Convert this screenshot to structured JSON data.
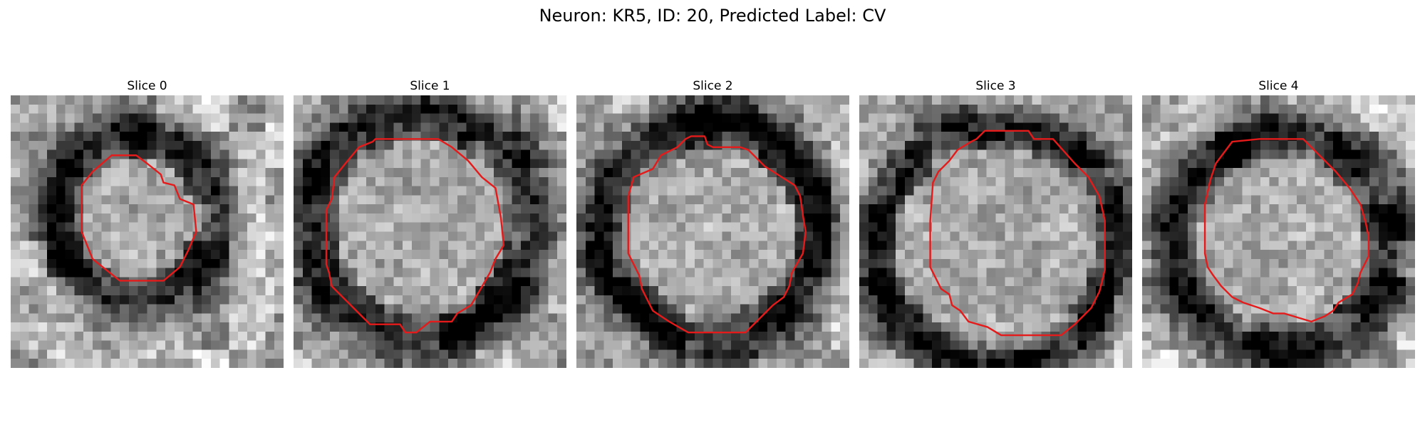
{
  "figure": {
    "title": "Neuron: KR5, ID: 20, Predicted Label: CV",
    "outline_color": "#e51a1a",
    "colormap": "gray",
    "slices": [
      {
        "label": "Slice 0",
        "seed": 11,
        "center": [
          0.46,
          0.45
        ],
        "ring_radius": 0.3,
        "ring_width": 0.09,
        "contour": [
          [
            0.37,
            0.22
          ],
          [
            0.46,
            0.22
          ],
          [
            0.5,
            0.25
          ],
          [
            0.55,
            0.29
          ],
          [
            0.56,
            0.32
          ],
          [
            0.6,
            0.33
          ],
          [
            0.62,
            0.38
          ],
          [
            0.67,
            0.4
          ],
          [
            0.68,
            0.5
          ],
          [
            0.65,
            0.57
          ],
          [
            0.62,
            0.63
          ],
          [
            0.56,
            0.68
          ],
          [
            0.4,
            0.68
          ],
          [
            0.3,
            0.6
          ],
          [
            0.26,
            0.5
          ],
          [
            0.26,
            0.33
          ],
          [
            0.3,
            0.28
          ]
        ]
      },
      {
        "label": "Slice 1",
        "seed": 23,
        "center": [
          0.47,
          0.47
        ],
        "ring_radius": 0.41,
        "ring_width": 0.1,
        "contour": [
          [
            0.29,
            0.17
          ],
          [
            0.3,
            0.16
          ],
          [
            0.53,
            0.16
          ],
          [
            0.58,
            0.19
          ],
          [
            0.64,
            0.24
          ],
          [
            0.69,
            0.3
          ],
          [
            0.74,
            0.34
          ],
          [
            0.76,
            0.45
          ],
          [
            0.77,
            0.55
          ],
          [
            0.74,
            0.6
          ],
          [
            0.72,
            0.65
          ],
          [
            0.68,
            0.72
          ],
          [
            0.65,
            0.77
          ],
          [
            0.6,
            0.8
          ],
          [
            0.58,
            0.83
          ],
          [
            0.5,
            0.83
          ],
          [
            0.45,
            0.87
          ],
          [
            0.41,
            0.87
          ],
          [
            0.39,
            0.84
          ],
          [
            0.28,
            0.84
          ],
          [
            0.22,
            0.78
          ],
          [
            0.18,
            0.74
          ],
          [
            0.14,
            0.7
          ],
          [
            0.13,
            0.65
          ],
          [
            0.12,
            0.62
          ],
          [
            0.12,
            0.42
          ],
          [
            0.14,
            0.38
          ],
          [
            0.15,
            0.3
          ],
          [
            0.19,
            0.25
          ],
          [
            0.24,
            0.19
          ]
        ]
      },
      {
        "label": "Slice 2",
        "seed": 37,
        "center": [
          0.5,
          0.5
        ],
        "ring_radius": 0.4,
        "ring_width": 0.1,
        "contour": [
          [
            0.4,
            0.16
          ],
          [
            0.42,
            0.15
          ],
          [
            0.47,
            0.15
          ],
          [
            0.48,
            0.18
          ],
          [
            0.5,
            0.19
          ],
          [
            0.6,
            0.19
          ],
          [
            0.63,
            0.2
          ],
          [
            0.69,
            0.26
          ],
          [
            0.8,
            0.33
          ],
          [
            0.82,
            0.37
          ],
          [
            0.83,
            0.44
          ],
          [
            0.84,
            0.5
          ],
          [
            0.83,
            0.58
          ],
          [
            0.79,
            0.65
          ],
          [
            0.78,
            0.7
          ],
          [
            0.76,
            0.74
          ],
          [
            0.72,
            0.77
          ],
          [
            0.66,
            0.83
          ],
          [
            0.62,
            0.87
          ],
          [
            0.41,
            0.87
          ],
          [
            0.34,
            0.83
          ],
          [
            0.28,
            0.79
          ],
          [
            0.26,
            0.75
          ],
          [
            0.24,
            0.71
          ],
          [
            0.23,
            0.66
          ],
          [
            0.21,
            0.62
          ],
          [
            0.19,
            0.58
          ],
          [
            0.19,
            0.37
          ],
          [
            0.21,
            0.3
          ],
          [
            0.28,
            0.27
          ],
          [
            0.31,
            0.22
          ],
          [
            0.37,
            0.19
          ]
        ]
      },
      {
        "label": "Slice 3",
        "seed": 53,
        "center": [
          0.5,
          0.55
        ],
        "ring_radius": 0.44,
        "ring_width": 0.08,
        "contour": [
          [
            0.43,
            0.16
          ],
          [
            0.46,
            0.13
          ],
          [
            0.62,
            0.13
          ],
          [
            0.64,
            0.16
          ],
          [
            0.71,
            0.16
          ],
          [
            0.79,
            0.25
          ],
          [
            0.84,
            0.3
          ],
          [
            0.88,
            0.37
          ],
          [
            0.9,
            0.46
          ],
          [
            0.9,
            0.55
          ],
          [
            0.9,
            0.64
          ],
          [
            0.88,
            0.72
          ],
          [
            0.85,
            0.78
          ],
          [
            0.79,
            0.84
          ],
          [
            0.74,
            0.88
          ],
          [
            0.52,
            0.88
          ],
          [
            0.47,
            0.85
          ],
          [
            0.4,
            0.83
          ],
          [
            0.37,
            0.79
          ],
          [
            0.34,
            0.77
          ],
          [
            0.33,
            0.73
          ],
          [
            0.3,
            0.71
          ],
          [
            0.28,
            0.67
          ],
          [
            0.26,
            0.63
          ],
          [
            0.26,
            0.46
          ],
          [
            0.27,
            0.32
          ],
          [
            0.29,
            0.28
          ],
          [
            0.33,
            0.24
          ],
          [
            0.36,
            0.2
          ],
          [
            0.41,
            0.17
          ]
        ]
      },
      {
        "label": "Slice 4",
        "seed": 71,
        "center": [
          0.51,
          0.54
        ],
        "ring_radius": 0.4,
        "ring_width": 0.1,
        "contour": [
          [
            0.33,
            0.17
          ],
          [
            0.43,
            0.16
          ],
          [
            0.49,
            0.16
          ],
          [
            0.59,
            0.16
          ],
          [
            0.64,
            0.21
          ],
          [
            0.71,
            0.28
          ],
          [
            0.76,
            0.34
          ],
          [
            0.8,
            0.4
          ],
          [
            0.82,
            0.47
          ],
          [
            0.83,
            0.52
          ],
          [
            0.83,
            0.59
          ],
          [
            0.8,
            0.65
          ],
          [
            0.79,
            0.69
          ],
          [
            0.77,
            0.73
          ],
          [
            0.72,
            0.76
          ],
          [
            0.7,
            0.79
          ],
          [
            0.67,
            0.81
          ],
          [
            0.62,
            0.83
          ],
          [
            0.52,
            0.8
          ],
          [
            0.48,
            0.8
          ],
          [
            0.43,
            0.78
          ],
          [
            0.37,
            0.76
          ],
          [
            0.33,
            0.74
          ],
          [
            0.29,
            0.7
          ],
          [
            0.26,
            0.66
          ],
          [
            0.24,
            0.63
          ],
          [
            0.23,
            0.58
          ],
          [
            0.23,
            0.4
          ],
          [
            0.25,
            0.31
          ],
          [
            0.27,
            0.25
          ]
        ]
      }
    ]
  }
}
